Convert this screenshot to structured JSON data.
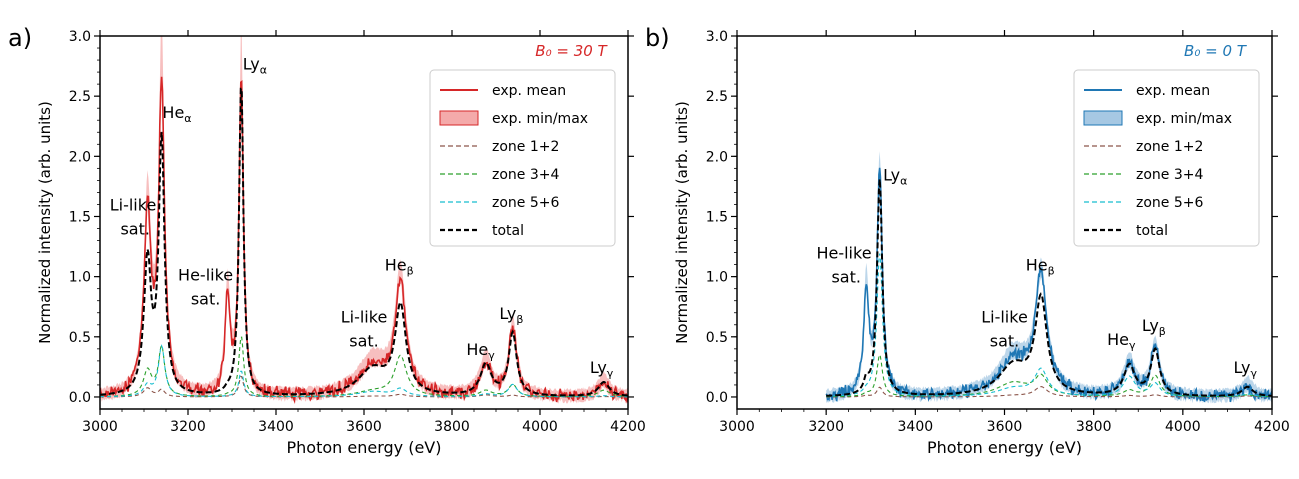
{
  "chart_data": [
    {
      "panel_label": "a)",
      "type": "line",
      "field_label": "B₀ = 30 T",
      "field_color": "#d62728",
      "xlabel": "Photon energy (eV)",
      "ylabel": "Normalized intensity (arb. units)",
      "xlim": [
        3000,
        4200
      ],
      "ylim": [
        -0.1,
        3.0
      ],
      "xticks": [
        "3000",
        "3200",
        "3400",
        "3600",
        "3800",
        "4000",
        "4200"
      ],
      "yticks": [
        "0.0",
        "0.5",
        "1.0",
        "1.5",
        "2.0",
        "2.5",
        "3.0"
      ],
      "legend_position": "upper-right",
      "legend": [
        "exp. mean",
        "exp. min/max",
        "zone 1+2",
        "zone 3+4",
        "zone 5+6",
        "total"
      ],
      "annotations": [
        {
          "text": "Li-like",
          "x": 3075,
          "y": 1.55
        },
        {
          "text": "sat.",
          "x": 3080,
          "y": 1.35
        },
        {
          "text": "Heα",
          "x": 3175,
          "y": 2.32
        },
        {
          "text": "Lyα",
          "x": 3352,
          "y": 2.72
        },
        {
          "text": "He-like",
          "x": 3240,
          "y": 0.97
        },
        {
          "text": "sat.",
          "x": 3240,
          "y": 0.77
        },
        {
          "text": "Li-like",
          "x": 3600,
          "y": 0.62
        },
        {
          "text": "sat.",
          "x": 3600,
          "y": 0.42
        },
        {
          "text": "Heβ",
          "x": 3680,
          "y": 1.05
        },
        {
          "text": "Heγ",
          "x": 3865,
          "y": 0.35
        },
        {
          "text": "Lyβ",
          "x": 3935,
          "y": 0.65
        },
        {
          "text": "Lyγ",
          "x": 4140,
          "y": 0.2
        }
      ],
      "peaks": [
        {
          "name": "Li-like sat.",
          "x": 3108,
          "mean": 1.5,
          "max": 1.65,
          "total": 1.1,
          "width": 10
        },
        {
          "name": "Heα",
          "x": 3140,
          "mean": 2.56,
          "max": 2.95,
          "total": 2.1,
          "width": 8
        },
        {
          "name": "He-like sat.",
          "x": 3290,
          "mean": 0.8,
          "max": 0.9,
          "total": 0.02,
          "width": 7
        },
        {
          "name": "Lyα",
          "x": 3321,
          "mean": 2.65,
          "max": 3.0,
          "total": 2.62,
          "width": 6
        },
        {
          "name": "Li-like sat.",
          "x": 3620,
          "mean": 0.25,
          "max": 0.3,
          "total": 0.22,
          "width": 40
        },
        {
          "name": "Heβ",
          "x": 3683,
          "mean": 0.9,
          "max": 1.0,
          "total": 0.72,
          "width": 15
        },
        {
          "name": "Heγ",
          "x": 3877,
          "mean": 0.27,
          "max": 0.32,
          "total": 0.26,
          "width": 15
        },
        {
          "name": "Lyβ",
          "x": 3938,
          "mean": 0.55,
          "max": 0.6,
          "total": 0.52,
          "width": 11
        },
        {
          "name": "Lyγ",
          "x": 4145,
          "mean": 0.12,
          "max": 0.15,
          "total": 0.12,
          "width": 15
        }
      ],
      "series": [
        {
          "name": "exp. mean",
          "color": "#d62728",
          "style": "solid"
        },
        {
          "name": "exp. min/max",
          "color": "#f4aaaa",
          "style": "band"
        },
        {
          "name": "zone 1+2",
          "color": "#8c564b",
          "style": "dashed"
        },
        {
          "name": "zone 3+4",
          "color": "#2ca02c",
          "style": "dashed"
        },
        {
          "name": "zone 5+6",
          "color": "#17becf",
          "style": "dashed"
        },
        {
          "name": "total",
          "color": "#000000",
          "style": "dashed"
        }
      ]
    },
    {
      "panel_label": "b)",
      "type": "line",
      "field_label": "B₀ = 0 T",
      "field_color": "#1f77b4",
      "xlabel": "Photon energy (eV)",
      "ylabel": "Normalized intensity (arb. units)",
      "xlim": [
        3000,
        4200
      ],
      "ylim": [
        -0.1,
        3.0
      ],
      "xticks": [
        "3000",
        "3200",
        "3400",
        "3600",
        "3800",
        "4000",
        "4200"
      ],
      "yticks": [
        "0.0",
        "0.5",
        "1.0",
        "1.5",
        "2.0",
        "2.5",
        "3.0"
      ],
      "legend_position": "upper-right",
      "legend": [
        "exp. mean",
        "exp. min/max",
        "zone 1+2",
        "zone 3+4",
        "zone 5+6",
        "total"
      ],
      "annotations": [
        {
          "text": "He-like",
          "x": 3240,
          "y": 1.15
        },
        {
          "text": "sat.",
          "x": 3245,
          "y": 0.95
        },
        {
          "text": "Lyα",
          "x": 3355,
          "y": 1.8
        },
        {
          "text": "Heβ",
          "x": 3680,
          "y": 1.05
        },
        {
          "text": "Li-like",
          "x": 3600,
          "y": 0.62
        },
        {
          "text": "sat.",
          "x": 3600,
          "y": 0.42
        },
        {
          "text": "Heγ",
          "x": 3862,
          "y": 0.43
        },
        {
          "text": "Lyβ",
          "x": 3935,
          "y": 0.55
        },
        {
          "text": "Lyγ",
          "x": 4140,
          "y": 0.2
        }
      ],
      "peaks": [
        {
          "name": "He-like sat.",
          "x": 3290,
          "mean": 0.87,
          "max": 0.95,
          "total": 0.1,
          "width": 7
        },
        {
          "name": "Lyα",
          "x": 3320,
          "mean": 1.85,
          "max": 1.95,
          "total": 1.8,
          "width": 7
        },
        {
          "name": "Li-like sat.",
          "x": 3620,
          "mean": 0.3,
          "max": 0.35,
          "total": 0.25,
          "width": 40
        },
        {
          "name": "Heβ",
          "x": 3682,
          "mean": 0.95,
          "max": 1.0,
          "total": 0.78,
          "width": 16
        },
        {
          "name": "Heγ",
          "x": 3880,
          "mean": 0.25,
          "max": 0.3,
          "total": 0.25,
          "width": 15
        },
        {
          "name": "Lyβ",
          "x": 3938,
          "mean": 0.4,
          "max": 0.44,
          "total": 0.38,
          "width": 12
        },
        {
          "name": "Lyγ",
          "x": 4145,
          "mean": 0.08,
          "max": 0.12,
          "total": 0.08,
          "width": 15
        }
      ],
      "series": [
        {
          "name": "exp. mean",
          "color": "#1f77b4",
          "style": "solid"
        },
        {
          "name": "exp. min/max",
          "color": "#a6c8e3",
          "style": "band"
        },
        {
          "name": "zone 1+2",
          "color": "#8c564b",
          "style": "dashed"
        },
        {
          "name": "zone 3+4",
          "color": "#2ca02c",
          "style": "dashed"
        },
        {
          "name": "zone 5+6",
          "color": "#17becf",
          "style": "dashed"
        },
        {
          "name": "total",
          "color": "#000000",
          "style": "dashed"
        }
      ]
    }
  ]
}
